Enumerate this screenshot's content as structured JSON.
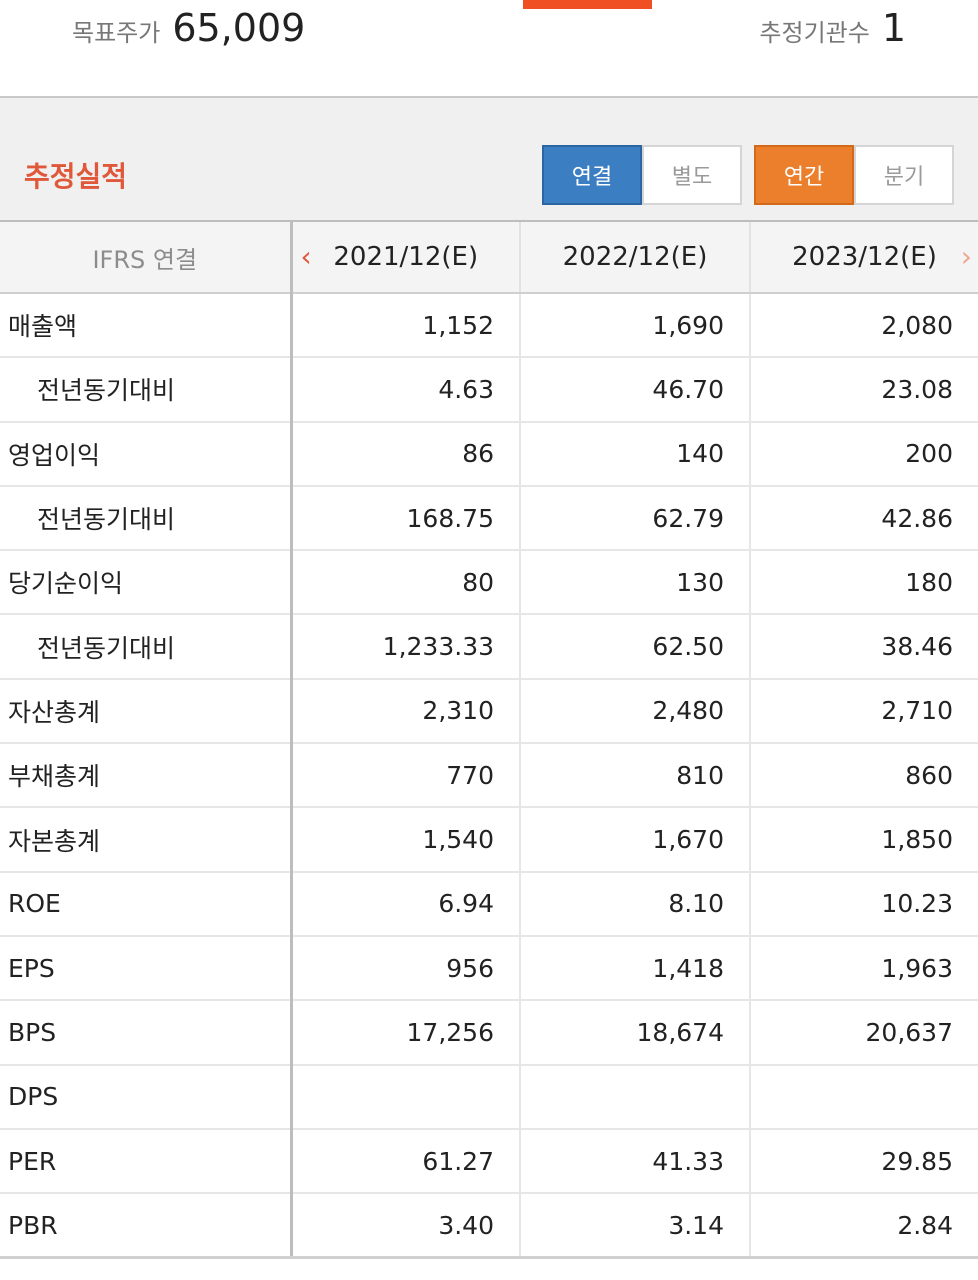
{
  "summary": {
    "target_price_label": "목표주가",
    "target_price_value": "65,009",
    "institutions_label": "추정기관수",
    "institutions_value": "1"
  },
  "section": {
    "title": "추정실적",
    "basis_options": [
      "연결",
      "별도"
    ],
    "basis_selected": "연결",
    "period_options": [
      "연간",
      "분기"
    ],
    "period_selected": "연간"
  },
  "table": {
    "header_label": "IFRS 연결",
    "columns": [
      "2021/12(E)",
      "2022/12(E)",
      "2023/12(E)"
    ],
    "rows": [
      {
        "label": "매출액",
        "sub": false,
        "values": [
          "1,152",
          "1,690",
          "2,080"
        ]
      },
      {
        "label": "전년동기대비",
        "sub": true,
        "values": [
          "4.63",
          "46.70",
          "23.08"
        ]
      },
      {
        "label": "영업이익",
        "sub": false,
        "values": [
          "86",
          "140",
          "200"
        ]
      },
      {
        "label": "전년동기대비",
        "sub": true,
        "values": [
          "168.75",
          "62.79",
          "42.86"
        ]
      },
      {
        "label": "당기순이익",
        "sub": false,
        "values": [
          "80",
          "130",
          "180"
        ]
      },
      {
        "label": "전년동기대비",
        "sub": true,
        "values": [
          "1,233.33",
          "62.50",
          "38.46"
        ]
      },
      {
        "label": "자산총계",
        "sub": false,
        "values": [
          "2,310",
          "2,480",
          "2,710"
        ]
      },
      {
        "label": "부채총계",
        "sub": false,
        "values": [
          "770",
          "810",
          "860"
        ]
      },
      {
        "label": "자본총계",
        "sub": false,
        "values": [
          "1,540",
          "1,670",
          "1,850"
        ]
      },
      {
        "label": "ROE",
        "sub": false,
        "values": [
          "6.94",
          "8.10",
          "10.23"
        ]
      },
      {
        "label": "EPS",
        "sub": false,
        "values": [
          "956",
          "1,418",
          "1,963"
        ]
      },
      {
        "label": "BPS",
        "sub": false,
        "values": [
          "17,256",
          "18,674",
          "20,637"
        ]
      },
      {
        "label": "DPS",
        "sub": false,
        "values": [
          "",
          "",
          ""
        ]
      },
      {
        "label": "PER",
        "sub": false,
        "values": [
          "61.27",
          "41.33",
          "29.85"
        ]
      },
      {
        "label": "PBR",
        "sub": false,
        "values": [
          "3.40",
          "3.14",
          "2.84"
        ]
      }
    ]
  },
  "icons": {
    "prev": "chevron-left-icon",
    "next": "chevron-right-icon"
  },
  "colors": {
    "accent": "#f04e23",
    "title": "#e0583a",
    "basis_active": "#3b7ec2",
    "period_active": "#ec7f2b"
  }
}
